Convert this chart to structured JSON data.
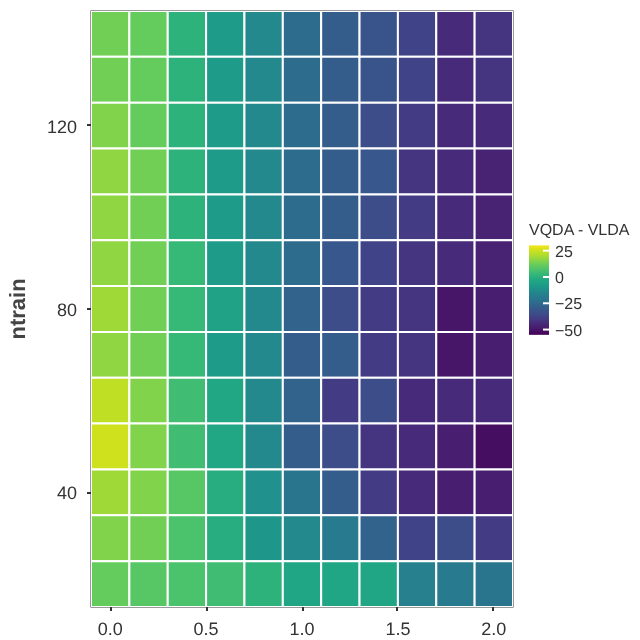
{
  "chart_data": {
    "type": "heatmap",
    "ylabel": "ntrain",
    "clabel": "VQDA - VLDA",
    "xlim": [
      -0.1,
      2.1
    ],
    "xticks": [
      {
        "value": 0,
        "label": "0.0"
      },
      {
        "value": 0.5,
        "label": "0.5"
      },
      {
        "value": 1,
        "label": "1.0"
      },
      {
        "value": 1.5,
        "label": "1.5"
      },
      {
        "value": 2,
        "label": "2.0"
      }
    ],
    "ylim": [
      15,
      145
    ],
    "yticks": [
      40,
      80,
      120
    ],
    "clim": [
      -55,
      30
    ],
    "cticks": [
      25,
      0,
      -25,
      -50
    ],
    "cells": [
      [
        12,
        10,
        0,
        -8,
        -15,
        -25,
        -30,
        -33,
        -38,
        -45,
        -42
      ],
      [
        12,
        10,
        0,
        -8,
        -15,
        -25,
        -30,
        -33,
        -38,
        -45,
        -42
      ],
      [
        14,
        10,
        0,
        -8,
        -15,
        -25,
        -30,
        -35,
        -40,
        -45,
        -45
      ],
      [
        16,
        12,
        0,
        -8,
        -15,
        -25,
        -30,
        -32,
        -42,
        -45,
        -47
      ],
      [
        16,
        12,
        0,
        -8,
        -15,
        -25,
        -30,
        -35,
        -40,
        -45,
        -47
      ],
      [
        16,
        12,
        2,
        -8,
        -15,
        -25,
        -32,
        -38,
        -42,
        -45,
        -47
      ],
      [
        18,
        12,
        2,
        -6,
        -15,
        -28,
        -35,
        -40,
        -42,
        -50,
        -48
      ],
      [
        16,
        12,
        2,
        -8,
        -15,
        -30,
        -30,
        -40,
        -42,
        -50,
        -48
      ],
      [
        22,
        14,
        4,
        -4,
        -15,
        -28,
        -40,
        -35,
        -45,
        -45,
        -45
      ],
      [
        24,
        14,
        4,
        -4,
        -15,
        -30,
        -35,
        -42,
        -45,
        -48,
        -52
      ],
      [
        18,
        14,
        8,
        -2,
        -12,
        -22,
        -30,
        -40,
        -45,
        -48,
        -48
      ],
      [
        14,
        12,
        6,
        -2,
        -10,
        -15,
        -20,
        -28,
        -38,
        -35,
        -40
      ],
      [
        10,
        8,
        6,
        4,
        0,
        -5,
        -5,
        -5,
        -18,
        -20,
        -22
      ]
    ]
  }
}
